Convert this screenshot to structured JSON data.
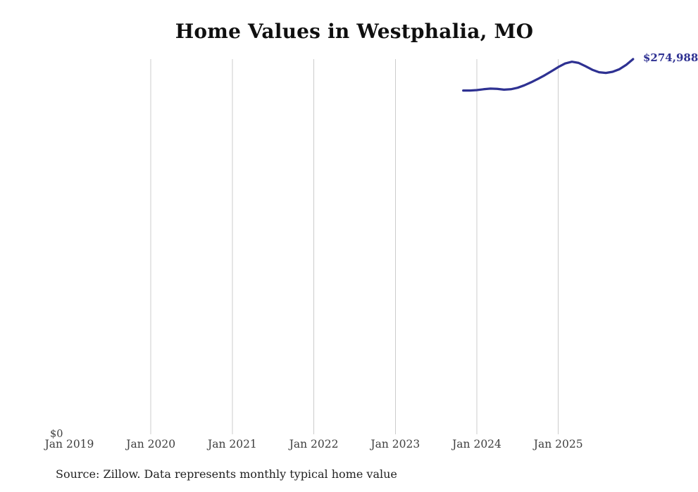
{
  "title": "Home Values in Westphalia, MO",
  "source_note": "Source: Zillow. Data represents monthly typical home value",
  "end_label": "$274,988",
  "y_axis": {
    "zero_tick_label": "$0"
  },
  "colors": {
    "line": "#2e3192",
    "grid": "#cccccc",
    "title_text": "#0f0f0f",
    "tick_text": "#3f3f3f",
    "source_text": "#222222",
    "value_label": "#2e3192",
    "background": "#ffffff"
  },
  "chart_data": {
    "type": "line",
    "title": "Home Values in Westphalia, MO",
    "xlabel": "",
    "ylabel": "",
    "ylim": [
      0,
      275000
    ],
    "grid": "vertical-only",
    "legend": false,
    "x": [
      "2023-11",
      "2023-12",
      "2024-01",
      "2024-02",
      "2024-03",
      "2024-04",
      "2024-05",
      "2024-06",
      "2024-07",
      "2024-08",
      "2024-09",
      "2024-10",
      "2024-11",
      "2024-12",
      "2025-01",
      "2025-02",
      "2025-03",
      "2025-04",
      "2025-05",
      "2025-06",
      "2025-07",
      "2025-08",
      "2025-09",
      "2025-10",
      "2025-11",
      "2025-12"
    ],
    "values": [
      252000,
      252000,
      252300,
      252900,
      253400,
      253200,
      252600,
      252900,
      254000,
      255800,
      258000,
      260500,
      263200,
      266200,
      269200,
      271800,
      273100,
      272200,
      269800,
      267200,
      265400,
      264900,
      265700,
      267600,
      270800,
      274988
    ],
    "end_point_label": "$274,988",
    "x_ticks": [
      {
        "label": "Jan 2019",
        "year": 2019,
        "gridline": false
      },
      {
        "label": "Jan 2020",
        "year": 2020,
        "gridline": true
      },
      {
        "label": "Jan 2021",
        "year": 2021,
        "gridline": true
      },
      {
        "label": "Jan 2022",
        "year": 2022,
        "gridline": true
      },
      {
        "label": "Jan 2023",
        "year": 2023,
        "gridline": true
      },
      {
        "label": "Jan 2024",
        "year": 2024,
        "gridline": true
      },
      {
        "label": "Jan 2025",
        "year": 2025,
        "gridline": true
      }
    ],
    "y_ticks": [
      {
        "label": "$0",
        "value": 0
      }
    ]
  }
}
